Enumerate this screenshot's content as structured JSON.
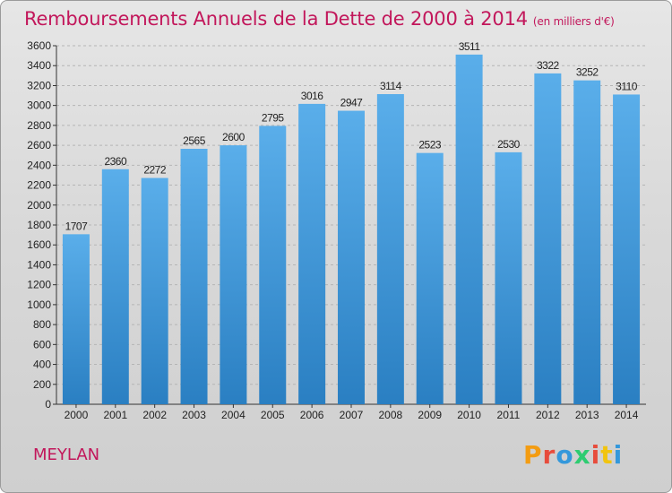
{
  "header": {
    "title": "Remboursements Annuels de la Dette de 2000 à 2014",
    "unit_note": "(en milliers d'€)"
  },
  "footer": {
    "city": "MEYLAN",
    "logo_text": "Proxiti",
    "logo_colors": [
      "#f39c12",
      "#e74c3c",
      "#3498db",
      "#2ecc71",
      "#e74c3c",
      "#f1c40f",
      "#3498db"
    ]
  },
  "colors": {
    "title": "#c2175b",
    "bar_top": "#5aaeea",
    "bar_bottom": "#2a7fc2",
    "grid": "#b5b5b5",
    "axis": "#333333"
  },
  "chart_data": {
    "type": "bar",
    "title": "Remboursements Annuels de la Dette de 2000 à 2014",
    "categories": [
      "2000",
      "2001",
      "2002",
      "2003",
      "2004",
      "2005",
      "2006",
      "2007",
      "2008",
      "2009",
      "2010",
      "2011",
      "2012",
      "2013",
      "2014"
    ],
    "values": [
      1707,
      2360,
      2272,
      2565,
      2600,
      2795,
      3016,
      2947,
      3114,
      2523,
      3511,
      2530,
      3322,
      3252,
      3110
    ],
    "ylim": [
      0,
      3600
    ],
    "yticks": [
      0,
      200,
      400,
      600,
      800,
      1000,
      1200,
      1400,
      1600,
      1800,
      2000,
      2200,
      2400,
      2600,
      2800,
      3000,
      3200,
      3400,
      3600
    ],
    "grid": true,
    "xlabel": "",
    "ylabel": ""
  }
}
